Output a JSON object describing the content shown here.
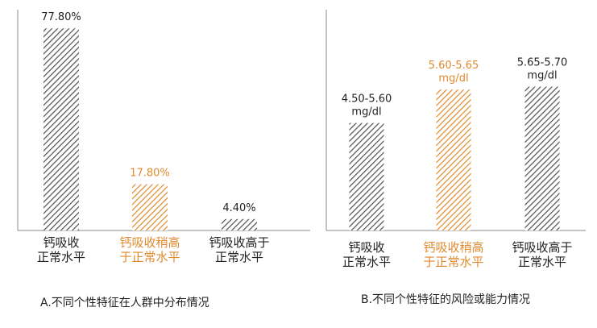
{
  "colors": {
    "gray": "#4f4f4f",
    "accent": "#e08a2e",
    "text": "#222222",
    "axis": "#888888"
  },
  "chart_data": [
    {
      "type": "bar",
      "title": "A.不同个性特征在人群中分布情况",
      "categories": [
        {
          "lines": [
            "钙吸收",
            "正常水平"
          ],
          "highlight": false
        },
        {
          "lines": [
            "钙吸收稍高",
            "于正常水平"
          ],
          "highlight": true
        },
        {
          "lines": [
            "钙吸收高于",
            "正常水平"
          ],
          "highlight": false
        }
      ],
      "values": [
        77.8,
        17.8,
        4.4
      ],
      "labels": [
        [
          "77.80%"
        ],
        [
          "17.80%"
        ],
        [
          "4.40%"
        ]
      ],
      "unit": "%",
      "ylim": [
        0,
        85
      ],
      "grid": false
    },
    {
      "type": "bar",
      "title": "B.不同个性特征的风险或能力情况",
      "categories": [
        {
          "lines": [
            "钙吸收",
            "正常水平"
          ],
          "highlight": false
        },
        {
          "lines": [
            "钙吸收稍高",
            "于正常水平"
          ],
          "highlight": true
        },
        {
          "lines": [
            "钙吸收高于",
            "正常水平"
          ],
          "highlight": false
        }
      ],
      "values": [
        5.05,
        5.625,
        5.675
      ],
      "labels": [
        [
          "4.50-5.60",
          "mg/dl"
        ],
        [
          "5.60-5.65",
          "mg/dl"
        ],
        [
          "5.65-5.70",
          "mg/dl"
        ]
      ],
      "unit": "mg/dl",
      "ylim": [
        3.2,
        7.0
      ],
      "grid": false
    }
  ]
}
